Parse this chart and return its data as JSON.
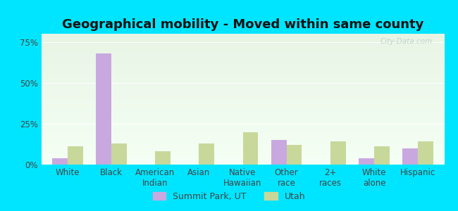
{
  "title": "Geographical mobility - Moved within same county",
  "categories": [
    "White",
    "Black",
    "American\nIndian",
    "Asian",
    "Native\nHawaiian",
    "Other\nrace",
    "2+\nraces",
    "White\nalone",
    "Hispanic"
  ],
  "summit_park": [
    4,
    68,
    0,
    0,
    0,
    15,
    0,
    4,
    10
  ],
  "utah": [
    11,
    13,
    8,
    13,
    20,
    12,
    14,
    11,
    14
  ],
  "summit_color": "#c9a8e0",
  "utah_color": "#c8d89a",
  "outer_bg": "#00e5ff",
  "grad_top": "#e8f5e5",
  "grad_bottom": "#f5fff5",
  "ylim": [
    0,
    80
  ],
  "yticks": [
    0,
    25,
    50,
    75
  ],
  "ytick_labels": [
    "0%",
    "25%",
    "50%",
    "75%"
  ],
  "legend_summit": "Summit Park, UT",
  "legend_utah": "Utah",
  "bar_width": 0.35,
  "title_fontsize": 13,
  "tick_fontsize": 8.5,
  "legend_fontsize": 9,
  "watermark": "City-Data.com"
}
